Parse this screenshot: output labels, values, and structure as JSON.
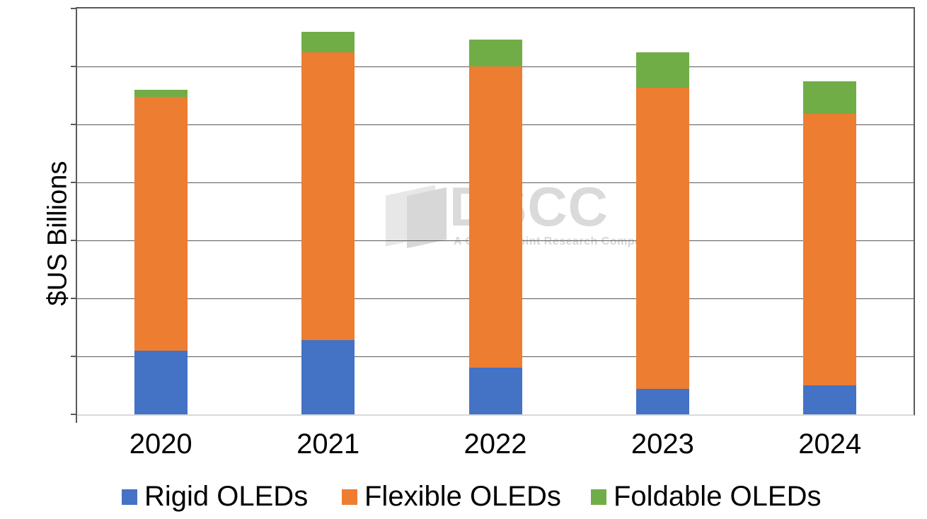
{
  "chart_data": {
    "type": "bar",
    "stacked": true,
    "title": "",
    "ylabel": "$US Billions",
    "xlabel": "",
    "categories": [
      "2020",
      "2021",
      "2022",
      "2023",
      "2024"
    ],
    "series": [
      {
        "name": "Rigid OLEDs",
        "color": "#4472C4",
        "values": [
          5.5,
          6.4,
          4.0,
          2.2,
          2.5
        ]
      },
      {
        "name": "Flexible OLEDs",
        "color": "#ED7D31",
        "values": [
          21.9,
          24.8,
          26.0,
          26.0,
          23.4
        ]
      },
      {
        "name": "Foldable OLEDs",
        "color": "#70AD47",
        "values": [
          0.6,
          1.8,
          2.3,
          3.0,
          2.8
        ]
      }
    ],
    "ylim": [
      0,
      35
    ],
    "gridline_interval": 5,
    "y_tick_labels_visible": false,
    "grid": true,
    "legend_position": "bottom",
    "note": "y-axis gridlines are unlabeled in the image; values estimated at 5 $US Billions per gridline"
  },
  "watermark": {
    "text": "DSCC",
    "tagline": "A Counterpoint Research Company"
  },
  "colors": {
    "rigid": "#4472C4",
    "flexible": "#ED7D31",
    "foldable": "#70AD47",
    "gridline": "#595959",
    "bottom_axis": "#d9d9d9"
  }
}
